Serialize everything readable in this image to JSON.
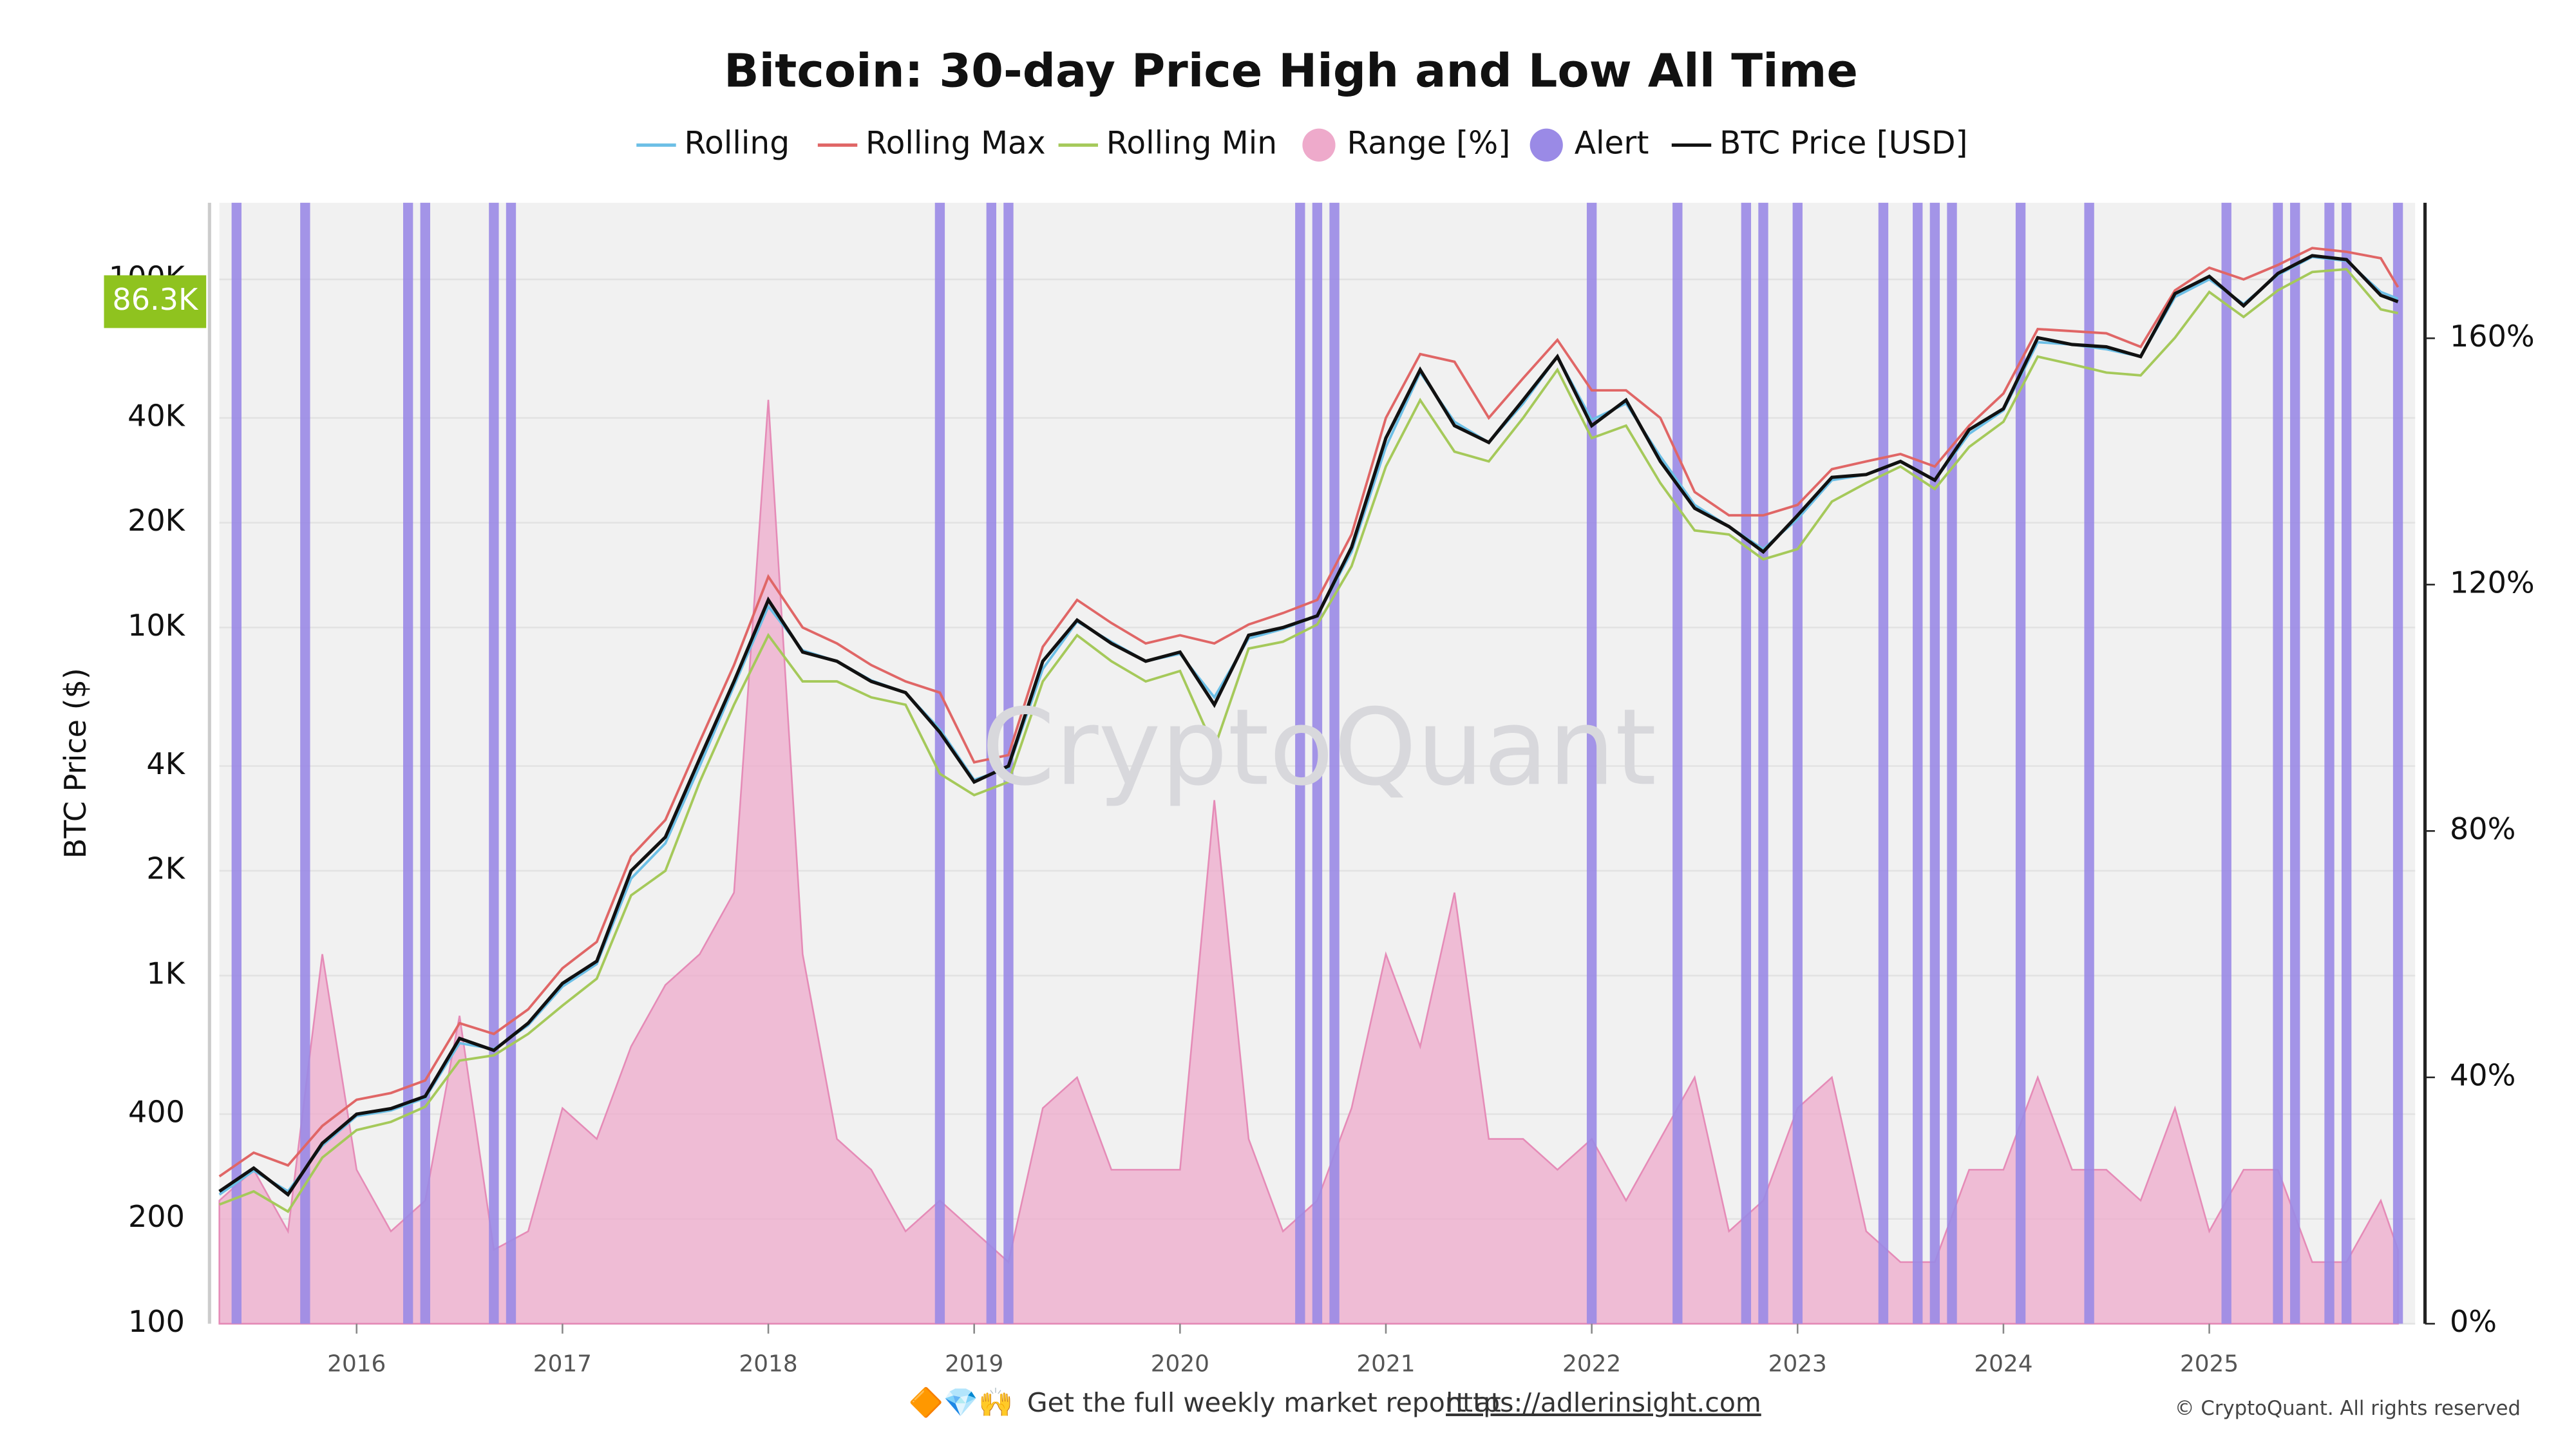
{
  "chart_data": {
    "type": "line",
    "title": "Bitcoin: 30-day Price High and Low All Time",
    "y_label": "BTC Price ($)",
    "watermark": "CryptoQuant",
    "last_price_label": "86.3K",
    "footer_emoji": "🔶💎🙌",
    "footer_text": "Get the full weekly market report at",
    "footer_link": "https://adlerinsight.com",
    "copyright": "© CryptoQuant. All rights reserved",
    "log_scale": true,
    "grid": true,
    "legend": "top",
    "x": [
      "2015-05",
      "2015-07",
      "2015-09",
      "2015-11",
      "2016-01",
      "2016-03",
      "2016-05",
      "2016-07",
      "2016-09",
      "2016-11",
      "2017-01",
      "2017-03",
      "2017-05",
      "2017-07",
      "2017-09",
      "2017-11",
      "2018-01",
      "2018-03",
      "2018-05",
      "2018-07",
      "2018-09",
      "2018-11",
      "2019-01",
      "2019-03",
      "2019-05",
      "2019-07",
      "2019-09",
      "2019-11",
      "2020-01",
      "2020-03",
      "2020-05",
      "2020-07",
      "2020-09",
      "2020-11",
      "2021-01",
      "2021-03",
      "2021-05",
      "2021-07",
      "2021-09",
      "2021-11",
      "2022-01",
      "2022-03",
      "2022-05",
      "2022-07",
      "2022-09",
      "2022-11",
      "2023-01",
      "2023-03",
      "2023-05",
      "2023-07",
      "2023-09",
      "2023-11",
      "2024-01",
      "2024-03",
      "2024-05",
      "2024-07",
      "2024-09",
      "2024-11",
      "2025-01",
      "2025-03",
      "2025-05",
      "2025-07",
      "2025-09",
      "2025-11",
      "2025-12"
    ],
    "xlim": [
      "2015-05",
      "2026-01"
    ],
    "xticks": [
      {
        "value": "2016-01",
        "label": "2016"
      },
      {
        "value": "2017-01",
        "label": "2017"
      },
      {
        "value": "2018-01",
        "label": "2018"
      },
      {
        "value": "2019-01",
        "label": "2019"
      },
      {
        "value": "2020-01",
        "label": "2020"
      },
      {
        "value": "2021-01",
        "label": "2021"
      },
      {
        "value": "2022-01",
        "label": "2022"
      },
      {
        "value": "2023-01",
        "label": "2023"
      },
      {
        "value": "2024-01",
        "label": "2024"
      },
      {
        "value": "2025-01",
        "label": "2025"
      }
    ],
    "ylim": [
      100,
      166000
    ],
    "yticks": [
      100,
      200,
      400,
      {
        "value": 1000,
        "label": "1K"
      },
      {
        "value": 2000,
        "label": "2K"
      },
      {
        "value": 4000,
        "label": "4K"
      },
      {
        "value": 10000,
        "label": "10K"
      },
      {
        "value": 20000,
        "label": "20K"
      },
      {
        "value": 40000,
        "label": "40K"
      },
      {
        "value": 100000,
        "label": "100K"
      }
    ],
    "y2lim": [
      0,
      182
    ],
    "y2ticks": [
      {
        "value": 0,
        "label": "0%"
      },
      {
        "value": 40,
        "label": "40%"
      },
      {
        "value": 80,
        "label": "80%"
      },
      {
        "value": 120,
        "label": "120%"
      },
      {
        "value": 160,
        "label": "160%"
      }
    ],
    "series": [
      {
        "name": "Rolling",
        "color": "#6cbfe6",
        "values": [
          235,
          275,
          240,
          325,
          395,
          410,
          445,
          640,
          615,
          720,
          930,
          1080,
          1900,
          2400,
          4000,
          6800,
          11500,
          8600,
          8000,
          7050,
          6500,
          5100,
          3650,
          3950,
          7600,
          10400,
          9100,
          8000,
          8400,
          6300,
          9300,
          9900,
          10800,
          16500,
          33000,
          54000,
          39000,
          34000,
          44000,
          60000,
          39500,
          44000,
          31000,
          22500,
          19500,
          16800,
          20500,
          26500,
          27500,
          30000,
          26500,
          36000,
          42000,
          66000,
          65000,
          63000,
          60000,
          89000,
          100000,
          85000,
          103000,
          116000,
          113000,
          92000,
          88000
        ]
      },
      {
        "name": "Rolling Max",
        "color": "#e06666",
        "values": [
          265,
          310,
          285,
          370,
          440,
          460,
          500,
          730,
          680,
          800,
          1050,
          1250,
          2200,
          2800,
          4700,
          7800,
          14000,
          10000,
          9000,
          7800,
          7000,
          6500,
          4100,
          4300,
          8800,
          12000,
          10300,
          9000,
          9500,
          9000,
          10200,
          11000,
          12000,
          18500,
          40000,
          61000,
          58000,
          40000,
          52000,
          67000,
          48000,
          48000,
          40000,
          24500,
          21000,
          21000,
          22500,
          28500,
          30000,
          31500,
          29000,
          38000,
          47000,
          72000,
          71000,
          70000,
          64000,
          93000,
          108000,
          100000,
          110000,
          123000,
          120000,
          115000,
          95000
        ]
      },
      {
        "name": "Rolling Min",
        "color": "#a5c95a",
        "values": [
          220,
          240,
          210,
          300,
          360,
          380,
          420,
          570,
          590,
          680,
          820,
          980,
          1700,
          2000,
          3600,
          6000,
          9500,
          7000,
          7000,
          6300,
          6000,
          3800,
          3300,
          3600,
          7000,
          9500,
          8000,
          7000,
          7500,
          4500,
          8700,
          9100,
          10200,
          15000,
          29000,
          45000,
          32000,
          30000,
          40000,
          55000,
          35000,
          38000,
          26000,
          19000,
          18500,
          15700,
          16800,
          23000,
          26000,
          29000,
          25000,
          33000,
          39000,
          60000,
          57000,
          54000,
          53000,
          68000,
          92000,
          78000,
          93000,
          105000,
          107000,
          82000,
          80000
        ]
      },
      {
        "name": "Range [%]",
        "color": "#eeaacb",
        "axis": "y2",
        "style": "area",
        "values": [
          20,
          25,
          15,
          60,
          25,
          15,
          20,
          50,
          12,
          15,
          35,
          30,
          45,
          55,
          60,
          70,
          150,
          60,
          30,
          25,
          15,
          20,
          15,
          10,
          35,
          40,
          25,
          25,
          25,
          85,
          30,
          15,
          20,
          35,
          60,
          45,
          70,
          30,
          30,
          25,
          30,
          20,
          30,
          40,
          15,
          20,
          35,
          40,
          15,
          10,
          10,
          25,
          25,
          40,
          25,
          25,
          20,
          35,
          15,
          25,
          25,
          10,
          10,
          20,
          12
        ]
      },
      {
        "name": "Alert",
        "color": "#9a8ae6",
        "style": "band",
        "dates": [
          "2015-06",
          "2015-10",
          "2016-04",
          "2016-05",
          "2016-09",
          "2016-10",
          "2018-11",
          "2019-02",
          "2019-03",
          "2020-08",
          "2020-09",
          "2020-10",
          "2022-01",
          "2022-06",
          "2022-10",
          "2022-11",
          "2023-01",
          "2023-06",
          "2023-08",
          "2023-09",
          "2023-10",
          "2024-02",
          "2024-06",
          "2025-02",
          "2025-05",
          "2025-06",
          "2025-08",
          "2025-09",
          "2025-12"
        ]
      },
      {
        "name": "BTC Price [USD]",
        "color": "#111111",
        "values": [
          240,
          280,
          235,
          330,
          400,
          415,
          450,
          660,
          610,
          730,
          950,
          1100,
          2000,
          2500,
          4200,
          7000,
          12000,
          8500,
          8000,
          7000,
          6500,
          5000,
          3600,
          4000,
          8000,
          10500,
          9000,
          8000,
          8500,
          6000,
          9500,
          10000,
          10800,
          17000,
          35000,
          55000,
          38000,
          34000,
          45000,
          60000,
          38000,
          45000,
          30000,
          22000,
          19500,
          16500,
          21000,
          27000,
          27500,
          30000,
          26500,
          37000,
          42500,
          68000,
          65000,
          64000,
          60000,
          91000,
          102000,
          84000,
          104000,
          117000,
          114000,
          90000,
          86300
        ]
      }
    ]
  }
}
